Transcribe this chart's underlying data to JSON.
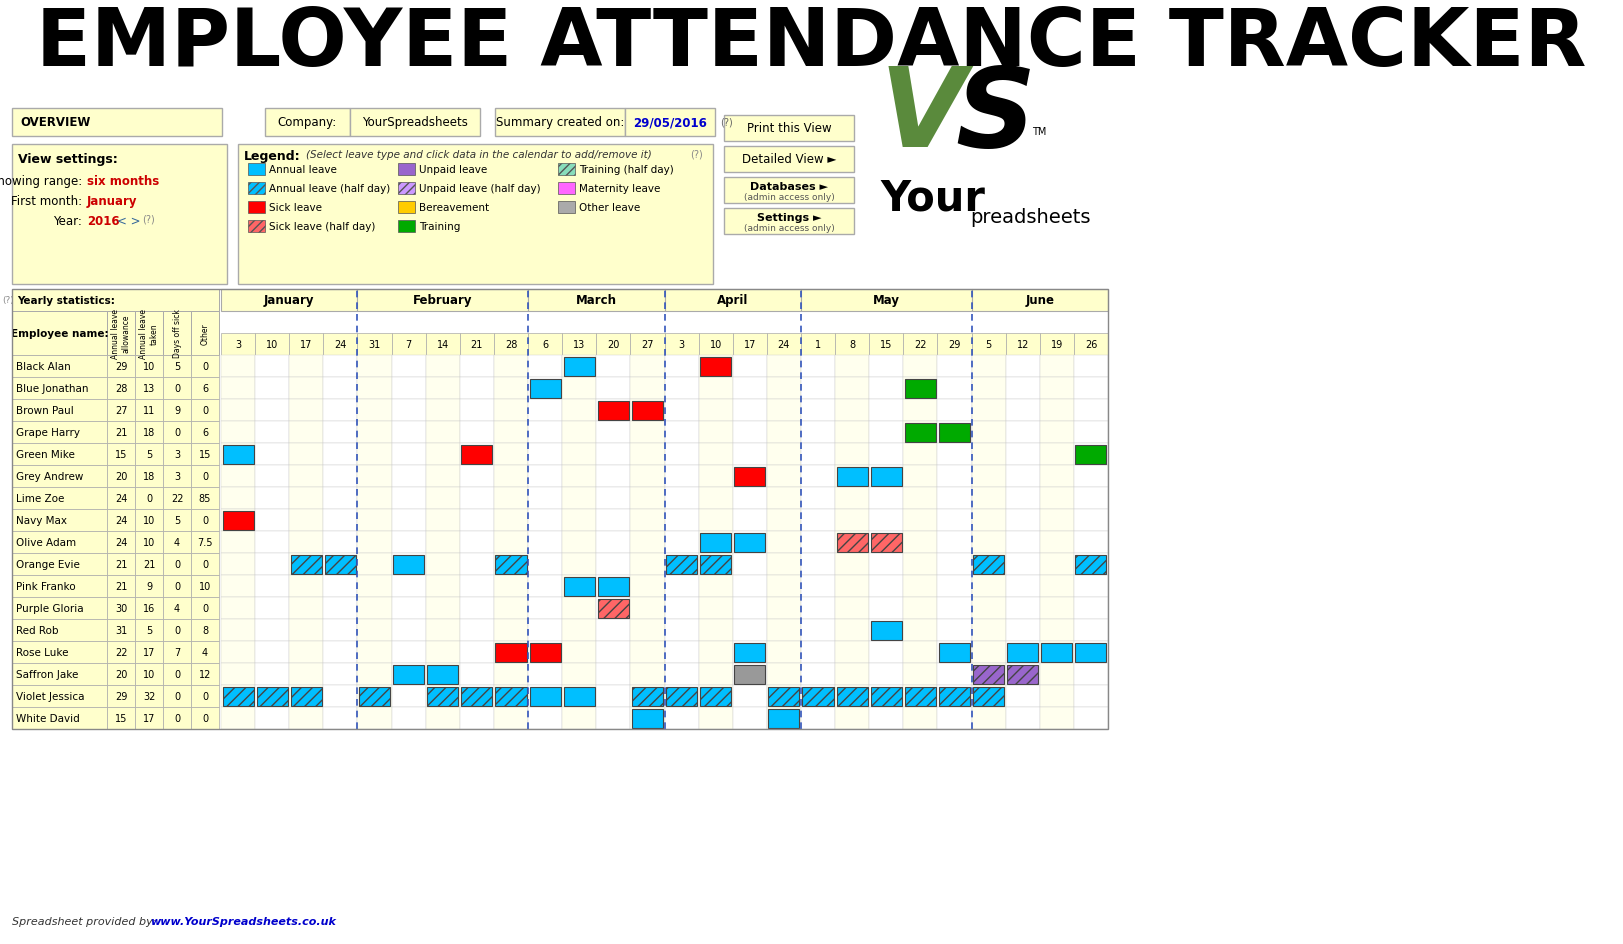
{
  "title": "EMPLOYEE ATTENDANCE TRACKER",
  "bg_color": "#ffffff",
  "cell_bg_yellow": "#ffffcc",
  "overview_text": "OVERVIEW",
  "company_label": "Company:",
  "company_value": "YourSpreadsheets",
  "summary_label": "Summary created on:",
  "summary_value": "29/05/2016",
  "view_settings_title": "View settings:",
  "showing_range_label": "Showing range:",
  "showing_range_value": "six months",
  "first_month_label": "First month:",
  "first_month_value": "January",
  "year_label": "Year:",
  "year_value": "2016",
  "legend_title": "Legend:",
  "legend_note": "(Select leave type and click data in the calendar to add/remove it)",
  "yearly_stats_label": "Yearly statistics:",
  "employees": [
    {
      "name": "Black Alan",
      "allowance": 29,
      "taken": 10,
      "sick": 5,
      "other": 0
    },
    {
      "name": "Blue Jonathan",
      "allowance": 28,
      "taken": 13,
      "sick": 0,
      "other": 6
    },
    {
      "name": "Brown Paul",
      "allowance": 27,
      "taken": 11,
      "sick": 9,
      "other": 0
    },
    {
      "name": "Grape Harry",
      "allowance": 21,
      "taken": 18,
      "sick": 0,
      "other": 6
    },
    {
      "name": "Green Mike",
      "allowance": 15,
      "taken": 5,
      "sick": 3,
      "other": 15
    },
    {
      "name": "Grey Andrew",
      "allowance": 20,
      "taken": 18,
      "sick": 3,
      "other": 0
    },
    {
      "name": "Lime Zoe",
      "allowance": 24,
      "taken": 0,
      "sick": 22,
      "other": 85
    },
    {
      "name": "Navy Max",
      "allowance": 24,
      "taken": 10,
      "sick": 5,
      "other": 0
    },
    {
      "name": "Olive Adam",
      "allowance": 24,
      "taken": 10,
      "sick": 4,
      "other": 7.5
    },
    {
      "name": "Orange Evie",
      "allowance": 21,
      "taken": 21,
      "sick": 0,
      "other": 0
    },
    {
      "name": "Pink Franko",
      "allowance": 21,
      "taken": 9,
      "sick": 0,
      "other": 10
    },
    {
      "name": "Purple Gloria",
      "allowance": 30,
      "taken": 16,
      "sick": 4,
      "other": 0
    },
    {
      "name": "Red Rob",
      "allowance": 31,
      "taken": 5,
      "sick": 0,
      "other": 8
    },
    {
      "name": "Rose Luke",
      "allowance": 22,
      "taken": 17,
      "sick": 7,
      "other": 4
    },
    {
      "name": "Saffron Jake",
      "allowance": 20,
      "taken": 10,
      "sick": 0,
      "other": 12
    },
    {
      "name": "Violet Jessica",
      "allowance": 29,
      "taken": 32,
      "sick": 0,
      "other": 0
    },
    {
      "name": "White David",
      "allowance": 15,
      "taken": 17,
      "sick": 0,
      "other": 0
    }
  ],
  "months": [
    "January",
    "February",
    "March",
    "April",
    "May",
    "June"
  ],
  "month_weeks": [
    [
      3,
      10,
      17,
      24
    ],
    [
      31,
      7,
      14,
      21,
      28
    ],
    [
      6,
      13,
      20,
      27
    ],
    [
      3,
      10,
      17,
      24
    ],
    [
      1,
      8,
      15,
      22,
      29
    ],
    [
      5,
      12,
      19,
      26
    ]
  ],
  "calendar_events": [
    {
      "employee": "Black Alan",
      "week_idx": 10,
      "color": "#00bfff",
      "hatch": null
    },
    {
      "employee": "Black Alan",
      "week_idx": 14,
      "color": "#ff0000",
      "hatch": null
    },
    {
      "employee": "Blue Jonathan",
      "week_idx": 9,
      "color": "#00bfff",
      "hatch": null
    },
    {
      "employee": "Blue Jonathan",
      "week_idx": 20,
      "color": "#00aa00",
      "hatch": null
    },
    {
      "employee": "Brown Paul",
      "week_idx": 11,
      "color": "#ff0000",
      "hatch": null
    },
    {
      "employee": "Brown Paul",
      "week_idx": 12,
      "color": "#ff0000",
      "hatch": null
    },
    {
      "employee": "Grape Harry",
      "week_idx": 20,
      "color": "#00aa00",
      "hatch": null
    },
    {
      "employee": "Grape Harry",
      "week_idx": 21,
      "color": "#00aa00",
      "hatch": null
    },
    {
      "employee": "Green Mike",
      "week_idx": 0,
      "color": "#00bfff",
      "hatch": null
    },
    {
      "employee": "Green Mike",
      "week_idx": 7,
      "color": "#ff0000",
      "hatch": null
    },
    {
      "employee": "Green Mike",
      "week_idx": 25,
      "color": "#00aa00",
      "hatch": null
    },
    {
      "employee": "Grey Andrew",
      "week_idx": 15,
      "color": "#ff0000",
      "hatch": null
    },
    {
      "employee": "Grey Andrew",
      "week_idx": 18,
      "color": "#00bfff",
      "hatch": null
    },
    {
      "employee": "Grey Andrew",
      "week_idx": 19,
      "color": "#00bfff",
      "hatch": null
    },
    {
      "employee": "Navy Max",
      "week_idx": 0,
      "color": "#ff0000",
      "hatch": null
    },
    {
      "employee": "Olive Adam",
      "week_idx": 14,
      "color": "#00bfff",
      "hatch": null
    },
    {
      "employee": "Olive Adam",
      "week_idx": 15,
      "color": "#00bfff",
      "hatch": null
    },
    {
      "employee": "Olive Adam",
      "week_idx": 18,
      "color": "#ff6666",
      "hatch": "///"
    },
    {
      "employee": "Olive Adam",
      "week_idx": 19,
      "color": "#ff6666",
      "hatch": "///"
    },
    {
      "employee": "Orange Evie",
      "week_idx": 2,
      "color": "#00bfff",
      "hatch": "///"
    },
    {
      "employee": "Orange Evie",
      "week_idx": 3,
      "color": "#00bfff",
      "hatch": "///"
    },
    {
      "employee": "Orange Evie",
      "week_idx": 5,
      "color": "#00bfff",
      "hatch": null
    },
    {
      "employee": "Orange Evie",
      "week_idx": 8,
      "color": "#00bfff",
      "hatch": "///"
    },
    {
      "employee": "Orange Evie",
      "week_idx": 13,
      "color": "#00bfff",
      "hatch": "///"
    },
    {
      "employee": "Orange Evie",
      "week_idx": 14,
      "color": "#00bfff",
      "hatch": "///"
    },
    {
      "employee": "Orange Evie",
      "week_idx": 22,
      "color": "#00bfff",
      "hatch": "///"
    },
    {
      "employee": "Orange Evie",
      "week_idx": 25,
      "color": "#00bfff",
      "hatch": "///"
    },
    {
      "employee": "Pink Franko",
      "week_idx": 10,
      "color": "#00bfff",
      "hatch": null
    },
    {
      "employee": "Pink Franko",
      "week_idx": 11,
      "color": "#00bfff",
      "hatch": null
    },
    {
      "employee": "Purple Gloria",
      "week_idx": 11,
      "color": "#ff6666",
      "hatch": "///"
    },
    {
      "employee": "Red Rob",
      "week_idx": 19,
      "color": "#00bfff",
      "hatch": null
    },
    {
      "employee": "Rose Luke",
      "week_idx": 8,
      "color": "#ff0000",
      "hatch": null
    },
    {
      "employee": "Rose Luke",
      "week_idx": 9,
      "color": "#ff0000",
      "hatch": null
    },
    {
      "employee": "Rose Luke",
      "week_idx": 15,
      "color": "#00bfff",
      "hatch": null
    },
    {
      "employee": "Rose Luke",
      "week_idx": 21,
      "color": "#00bfff",
      "hatch": null
    },
    {
      "employee": "Rose Luke",
      "week_idx": 23,
      "color": "#00bfff",
      "hatch": null
    },
    {
      "employee": "Rose Luke",
      "week_idx": 24,
      "color": "#00bfff",
      "hatch": null
    },
    {
      "employee": "Rose Luke",
      "week_idx": 25,
      "color": "#00bfff",
      "hatch": null
    },
    {
      "employee": "Saffron Jake",
      "week_idx": 5,
      "color": "#00bfff",
      "hatch": null
    },
    {
      "employee": "Saffron Jake",
      "week_idx": 6,
      "color": "#00bfff",
      "hatch": null
    },
    {
      "employee": "Saffron Jake",
      "week_idx": 15,
      "color": "#999999",
      "hatch": null
    },
    {
      "employee": "Saffron Jake",
      "week_idx": 22,
      "color": "#9966cc",
      "hatch": "///"
    },
    {
      "employee": "Saffron Jake",
      "week_idx": 23,
      "color": "#9966cc",
      "hatch": "///"
    },
    {
      "employee": "Violet Jessica",
      "week_idx": 0,
      "color": "#00bfff",
      "hatch": "///"
    },
    {
      "employee": "Violet Jessica",
      "week_idx": 1,
      "color": "#00bfff",
      "hatch": "///"
    },
    {
      "employee": "Violet Jessica",
      "week_idx": 2,
      "color": "#00bfff",
      "hatch": "///"
    },
    {
      "employee": "Violet Jessica",
      "week_idx": 4,
      "color": "#00bfff",
      "hatch": "///"
    },
    {
      "employee": "Violet Jessica",
      "week_idx": 6,
      "color": "#00bfff",
      "hatch": "///"
    },
    {
      "employee": "Violet Jessica",
      "week_idx": 7,
      "color": "#00bfff",
      "hatch": "///"
    },
    {
      "employee": "Violet Jessica",
      "week_idx": 8,
      "color": "#00bfff",
      "hatch": "///"
    },
    {
      "employee": "Violet Jessica",
      "week_idx": 9,
      "color": "#00bfff",
      "hatch": null
    },
    {
      "employee": "Violet Jessica",
      "week_idx": 10,
      "color": "#00bfff",
      "hatch": null
    },
    {
      "employee": "Violet Jessica",
      "week_idx": 12,
      "color": "#00bfff",
      "hatch": "///"
    },
    {
      "employee": "Violet Jessica",
      "week_idx": 13,
      "color": "#00bfff",
      "hatch": "///"
    },
    {
      "employee": "Violet Jessica",
      "week_idx": 14,
      "color": "#00bfff",
      "hatch": "///"
    },
    {
      "employee": "Violet Jessica",
      "week_idx": 16,
      "color": "#00bfff",
      "hatch": "///"
    },
    {
      "employee": "Violet Jessica",
      "week_idx": 17,
      "color": "#00bfff",
      "hatch": "///"
    },
    {
      "employee": "Violet Jessica",
      "week_idx": 18,
      "color": "#00bfff",
      "hatch": "///"
    },
    {
      "employee": "Violet Jessica",
      "week_idx": 19,
      "color": "#00bfff",
      "hatch": "///"
    },
    {
      "employee": "Violet Jessica",
      "week_idx": 20,
      "color": "#00bfff",
      "hatch": "///"
    },
    {
      "employee": "Violet Jessica",
      "week_idx": 21,
      "color": "#00bfff",
      "hatch": "///"
    },
    {
      "employee": "Violet Jessica",
      "week_idx": 22,
      "color": "#00bfff",
      "hatch": "///"
    },
    {
      "employee": "White David",
      "week_idx": 12,
      "color": "#00bfff",
      "hatch": null
    },
    {
      "employee": "White David",
      "week_idx": 16,
      "color": "#00bfff",
      "hatch": null
    }
  ],
  "footer": "Spreadsheet provided by:  www.YourSpreadsheets.co.uk"
}
